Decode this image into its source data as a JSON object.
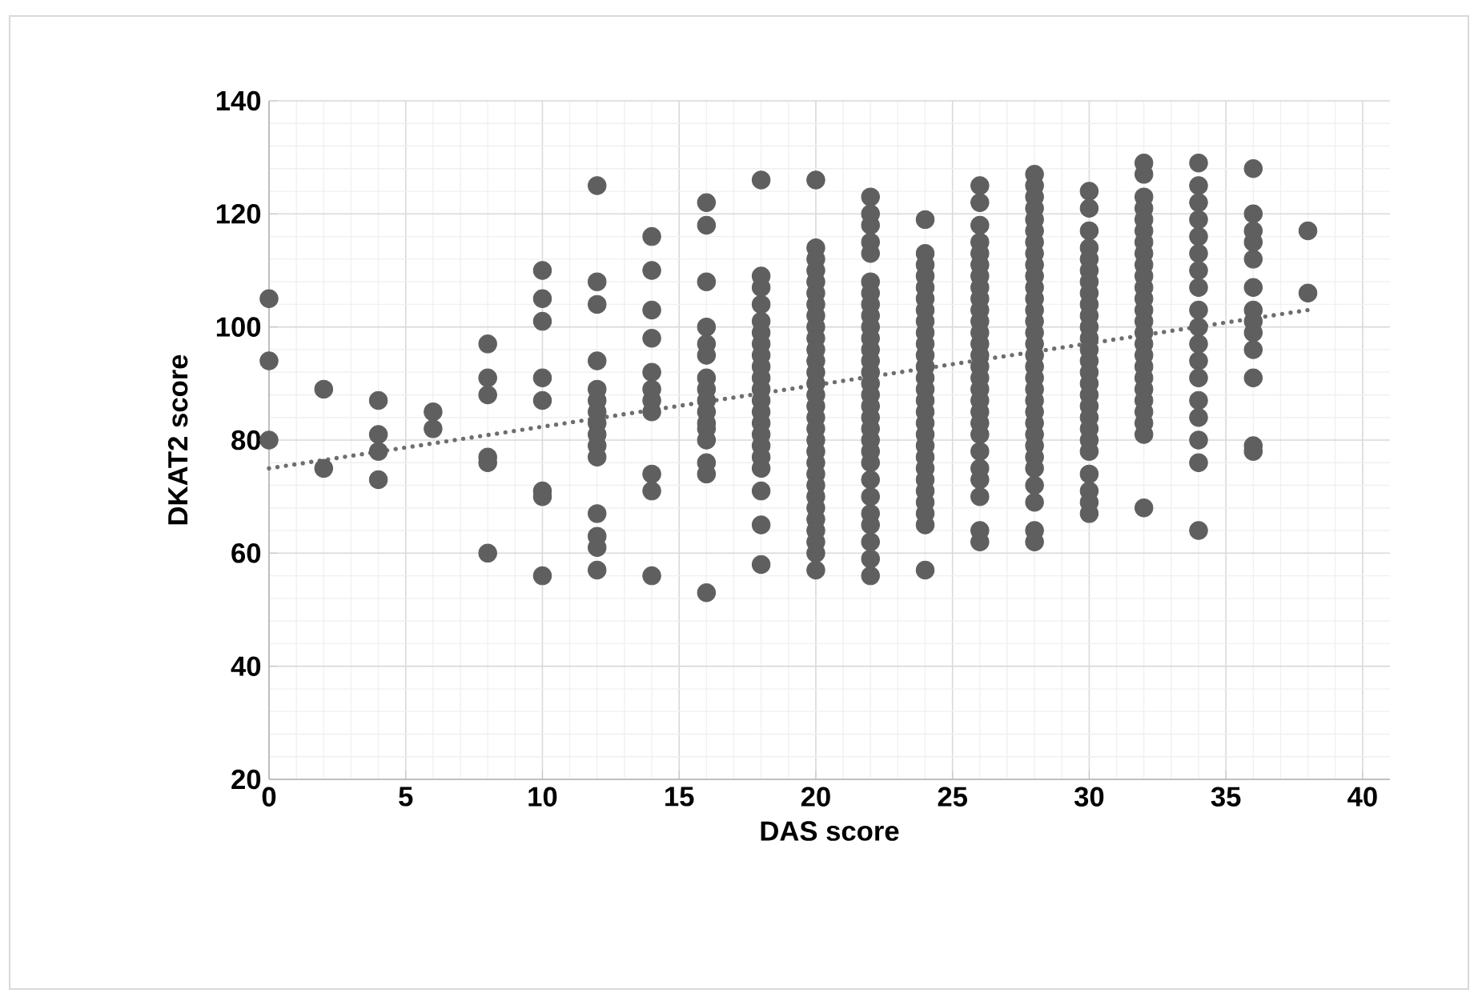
{
  "chart_data": {
    "type": "scatter",
    "xlabel": "DAS score",
    "ylabel": "DKAT2 score",
    "xlim": [
      0,
      41
    ],
    "ylim": [
      20,
      140
    ],
    "xticks": [
      0,
      5,
      10,
      15,
      20,
      25,
      30,
      35,
      40
    ],
    "yticks": [
      20,
      40,
      60,
      80,
      100,
      120,
      140
    ],
    "grid": true,
    "marker": "circle",
    "series": [
      {
        "color": "#5f5f5f",
        "x": [
          0,
          0,
          0,
          2,
          2,
          4,
          4,
          4,
          4,
          6,
          6,
          8,
          8,
          8,
          8,
          8,
          8,
          10,
          10,
          10,
          10,
          10,
          10,
          10,
          10,
          12,
          12,
          12,
          12,
          12,
          12,
          12,
          12,
          12,
          12,
          12,
          12,
          12,
          12,
          12,
          14,
          14,
          14,
          14,
          14,
          14,
          14,
          14,
          14,
          14,
          14,
          16,
          16,
          16,
          16,
          16,
          16,
          16,
          16,
          16,
          16,
          16,
          16,
          16,
          16,
          16,
          16
        ],
        "values": [
          105,
          94,
          80,
          89,
          75,
          87,
          81,
          78,
          73,
          85,
          82,
          97,
          91,
          88,
          77,
          76,
          60,
          110,
          105,
          101,
          91,
          87,
          71,
          70,
          56,
          125,
          108,
          104,
          94,
          89,
          87,
          85,
          83,
          81,
          79,
          77,
          67,
          63,
          61,
          57,
          116,
          110,
          103,
          98,
          92,
          89,
          87,
          85,
          74,
          71,
          56,
          122,
          118,
          108,
          100,
          97,
          95,
          91,
          89,
          87,
          85,
          83,
          82,
          80,
          76,
          74,
          53
        ]
      },
      {
        "color": "#5f5f5f",
        "x": [
          18,
          18,
          18,
          18,
          18,
          18,
          18,
          18,
          18,
          18,
          18,
          18,
          18,
          18,
          18,
          18,
          18,
          18,
          18,
          18,
          18
        ],
        "values": [
          126,
          109,
          107,
          104,
          101,
          99,
          97,
          95,
          93,
          91,
          89,
          87,
          85,
          83,
          81,
          79,
          77,
          75,
          71,
          65,
          58
        ]
      },
      {
        "color": "#5f5f5f",
        "x": [
          20,
          20,
          20,
          20,
          20,
          20,
          20,
          20,
          20,
          20,
          20,
          20,
          20,
          20,
          20,
          20,
          20,
          20,
          20,
          20,
          20,
          20,
          20,
          20,
          20,
          20,
          20,
          20,
          20,
          20
        ],
        "values": [
          126,
          114,
          112,
          110,
          108,
          106,
          104,
          102,
          100,
          98,
          96,
          94,
          92,
          90,
          88,
          86,
          84,
          82,
          80,
          78,
          76,
          74,
          72,
          70,
          68,
          66,
          64,
          62,
          60,
          57
        ]
      },
      {
        "color": "#5f5f5f",
        "x": [
          22,
          22,
          22,
          22,
          22,
          22,
          22,
          22,
          22,
          22,
          22,
          22,
          22,
          22,
          22,
          22,
          22,
          22,
          22,
          22,
          22,
          22,
          22,
          22,
          22,
          22,
          22,
          22,
          22
        ],
        "values": [
          123,
          120,
          118,
          115,
          113,
          108,
          106,
          104,
          102,
          100,
          98,
          96,
          94,
          92,
          90,
          88,
          86,
          84,
          82,
          80,
          78,
          76,
          73,
          70,
          67,
          65,
          62,
          59,
          56
        ]
      },
      {
        "color": "#5f5f5f",
        "x": [
          24,
          24,
          24,
          24,
          24,
          24,
          24,
          24,
          24,
          24,
          24,
          24,
          24,
          24,
          24,
          24,
          24,
          24,
          24,
          24,
          24,
          24,
          24,
          24,
          24,
          24,
          24
        ],
        "values": [
          119,
          113,
          111,
          109,
          107,
          105,
          103,
          101,
          99,
          97,
          95,
          93,
          91,
          89,
          87,
          85,
          83,
          81,
          79,
          77,
          75,
          73,
          71,
          69,
          67,
          65,
          57
        ]
      },
      {
        "color": "#5f5f5f",
        "x": [
          26,
          26,
          26,
          26,
          26,
          26,
          26,
          26,
          26,
          26,
          26,
          26,
          26,
          26,
          26,
          26,
          26,
          26,
          26,
          26,
          26,
          26,
          26,
          26,
          26,
          26,
          26
        ],
        "values": [
          125,
          122,
          118,
          115,
          113,
          111,
          109,
          107,
          105,
          103,
          101,
          99,
          97,
          95,
          93,
          91,
          89,
          87,
          85,
          83,
          81,
          78,
          75,
          73,
          70,
          64,
          62
        ]
      },
      {
        "color": "#5f5f5f",
        "x": [
          28,
          28,
          28,
          28,
          28,
          28,
          28,
          28,
          28,
          28,
          28,
          28,
          28,
          28,
          28,
          28,
          28,
          28,
          28,
          28,
          28,
          28,
          28,
          28,
          28,
          28,
          28,
          28,
          28,
          28,
          28
        ],
        "values": [
          127,
          125,
          123,
          121,
          119,
          117,
          115,
          113,
          111,
          109,
          107,
          105,
          103,
          101,
          99,
          97,
          95,
          93,
          91,
          89,
          87,
          85,
          83,
          81,
          79,
          77,
          75,
          72,
          69,
          64,
          62
        ]
      },
      {
        "color": "#5f5f5f",
        "x": [
          30,
          30,
          30,
          30,
          30,
          30,
          30,
          30,
          30,
          30,
          30,
          30,
          30,
          30,
          30,
          30,
          30,
          30,
          30,
          30,
          30,
          30,
          30,
          30,
          30,
          30
        ],
        "values": [
          124,
          121,
          117,
          114,
          112,
          110,
          108,
          106,
          104,
          102,
          100,
          98,
          96,
          94,
          92,
          90,
          88,
          86,
          84,
          82,
          80,
          78,
          74,
          71,
          69,
          67
        ]
      },
      {
        "color": "#5f5f5f",
        "x": [
          32,
          32,
          32,
          32,
          32,
          32,
          32,
          32,
          32,
          32,
          32,
          32,
          32,
          32,
          32,
          32,
          32,
          32,
          32,
          32,
          32,
          32,
          32,
          32,
          32
        ],
        "values": [
          129,
          127,
          123,
          121,
          119,
          117,
          115,
          113,
          111,
          109,
          107,
          105,
          103,
          101,
          99,
          97,
          95,
          93,
          91,
          89,
          87,
          85,
          83,
          81,
          68
        ]
      },
      {
        "color": "#5f5f5f",
        "x": [
          34,
          34,
          34,
          34,
          34,
          34,
          34,
          34,
          34,
          34,
          34,
          34,
          34,
          34,
          34,
          34,
          34,
          34,
          36,
          36,
          36,
          36,
          36,
          36,
          36,
          36,
          36,
          36,
          36,
          36,
          36,
          38,
          38
        ],
        "values": [
          129,
          125,
          122,
          119,
          116,
          113,
          110,
          107,
          103,
          100,
          97,
          94,
          91,
          87,
          84,
          80,
          76,
          64,
          128,
          120,
          117,
          115,
          112,
          107,
          103,
          101,
          99,
          96,
          91,
          79,
          78,
          117,
          106
        ]
      },
      {
        "type": "line",
        "color": "#6e6e6e",
        "line_style": "dotted",
        "marker": "none",
        "x": [
          0,
          38
        ],
        "values": [
          75,
          103
        ]
      }
    ]
  }
}
